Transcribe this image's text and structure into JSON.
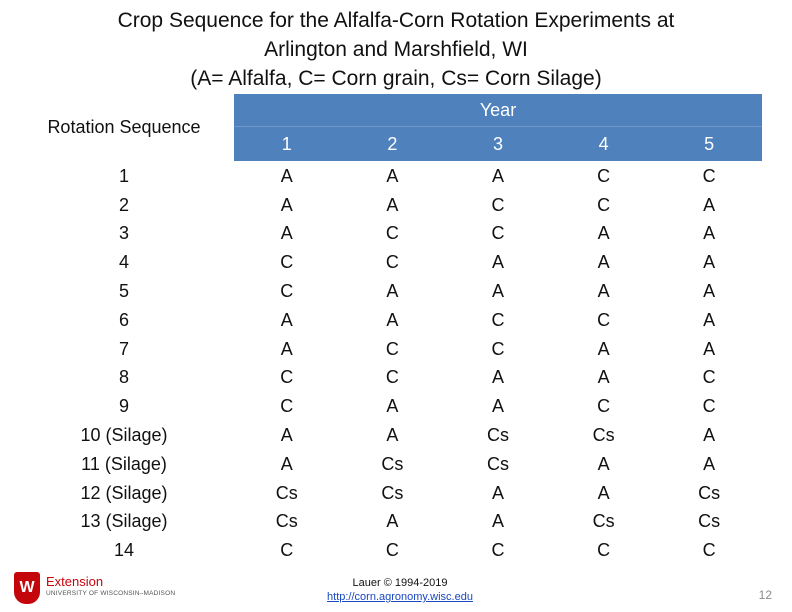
{
  "title_lines": [
    "Crop Sequence for the Alfalfa-Corn Rotation Experiments at",
    "Arlington and Marshfield, WI",
    "(A= Alfalfa, C= Corn grain, Cs= Corn Silage)"
  ],
  "table": {
    "rotation_header": "Rotation Sequence",
    "year_header": "Year",
    "year_columns": [
      "1",
      "2",
      "3",
      "4",
      "5"
    ],
    "rows": [
      {
        "seq": "1",
        "cells": [
          "A",
          "A",
          "A",
          "C",
          "C"
        ]
      },
      {
        "seq": "2",
        "cells": [
          "A",
          "A",
          "C",
          "C",
          "A"
        ]
      },
      {
        "seq": "3",
        "cells": [
          "A",
          "C",
          "C",
          "A",
          "A"
        ]
      },
      {
        "seq": "4",
        "cells": [
          "C",
          "C",
          "A",
          "A",
          "A"
        ]
      },
      {
        "seq": "5",
        "cells": [
          "C",
          "A",
          "A",
          "A",
          "A"
        ]
      },
      {
        "seq": "6",
        "cells": [
          "A",
          "A",
          "C",
          "C",
          "A"
        ]
      },
      {
        "seq": "7",
        "cells": [
          "A",
          "C",
          "C",
          "A",
          "A"
        ]
      },
      {
        "seq": "8",
        "cells": [
          "C",
          "C",
          "A",
          "A",
          "C"
        ]
      },
      {
        "seq": "9",
        "cells": [
          "C",
          "A",
          "A",
          "C",
          "C"
        ]
      },
      {
        "seq": "10 (Silage)",
        "cells": [
          "A",
          "A",
          "Cs",
          "Cs",
          "A"
        ]
      },
      {
        "seq": "11 (Silage)",
        "cells": [
          "A",
          "Cs",
          "Cs",
          "A",
          "A"
        ]
      },
      {
        "seq": "12 (Silage)",
        "cells": [
          "Cs",
          "Cs",
          "A",
          "A",
          "Cs"
        ]
      },
      {
        "seq": "13 (Silage)",
        "cells": [
          "Cs",
          "A",
          "A",
          "Cs",
          "Cs"
        ]
      },
      {
        "seq": "14",
        "cells": [
          "C",
          "C",
          "C",
          "C",
          "C"
        ]
      }
    ]
  },
  "footer": {
    "credit": "Lauer © 1994-2019",
    "link": "http://corn.agronomy.wisc.edu",
    "logo_title": "Extension",
    "logo_subtitle": "UNIVERSITY OF WISCONSIN–MADISON",
    "logo_mark": "W",
    "page_number": "12"
  },
  "colors": {
    "header_band": "#4f81bd",
    "logo_red": "#c5050c",
    "link": "#1a47c2"
  }
}
